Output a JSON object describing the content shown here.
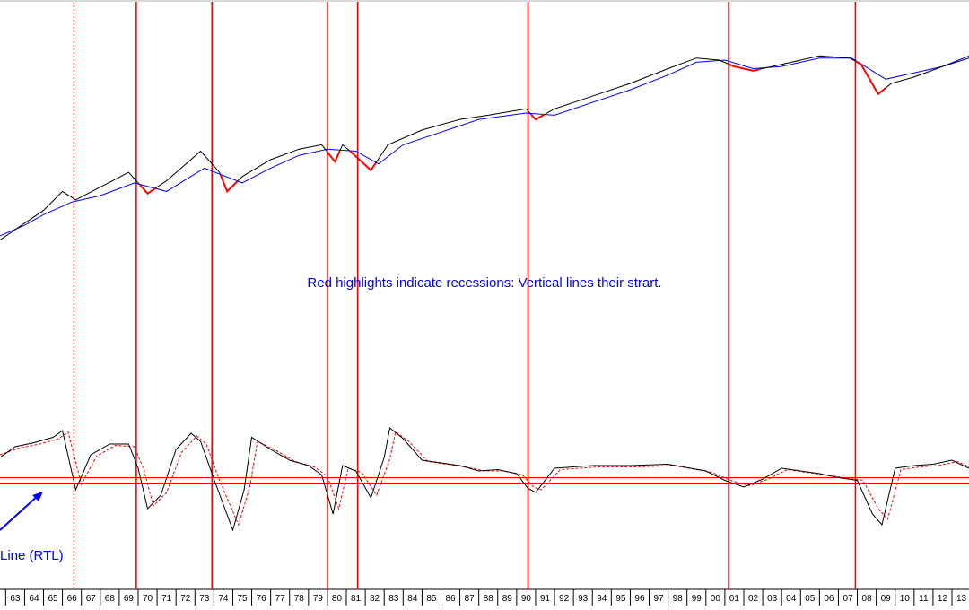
{
  "chart_data": {
    "type": "line",
    "title": "",
    "xlabel": "",
    "ylabel": "",
    "x_tick_labels": [
      "63",
      "64",
      "65",
      "66",
      "67",
      "68",
      "69",
      "70",
      "71",
      "72",
      "73",
      "74",
      "75",
      "76",
      "77",
      "78",
      "79",
      "80",
      "81",
      "82",
      "83",
      "84",
      "85",
      "86",
      "87",
      "88",
      "89",
      "90",
      "91",
      "92",
      "93",
      "94",
      "95",
      "96",
      "97",
      "98",
      "99",
      "00",
      "01",
      "02",
      "03",
      "04",
      "05",
      "06",
      "07",
      "08",
      "09",
      "10",
      "11",
      "12",
      "13"
    ],
    "x_range": [
      1962.7,
      2013.9
    ],
    "recession_starts": [
      1969.9,
      1973.9,
      1980.0,
      1981.6,
      1990.6,
      2001.2,
      2007.9
    ],
    "non_recession_marker": 1966.6,
    "grid": false,
    "annotations": {
      "main": "Red highlights indicate recessions: Vertical lines their strart.",
      "indicator": "Line (RTL)"
    },
    "colors": {
      "price": "#000000",
      "moving_average": "#0000ff",
      "recession_highlight": "#ff0000",
      "vertical_lines": "#ff0000",
      "indicator": "#000000",
      "indicator_signal": "#ff0000",
      "annotation_text": "#0000ff",
      "arrow": "#0000ff"
    },
    "panels": [
      {
        "name": "upper",
        "series": [
          {
            "type": "line",
            "points": [
              [
                1962.7,
                0.1
              ],
              [
                1964,
                0.9
              ],
              [
                1965,
                1.5
              ],
              [
                1966,
                2.4
              ],
              [
                1966.7,
                2.0
              ],
              [
                1968,
                2.6
              ],
              [
                1969.5,
                3.3
              ],
              [
                1970.5,
                2.3
              ],
              [
                1971.5,
                2.9
              ],
              [
                1973.3,
                4.3
              ],
              [
                1974.3,
                3.3
              ],
              [
                1974.7,
                2.4
              ],
              [
                1975.5,
                3.1
              ],
              [
                1977,
                3.9
              ],
              [
                1978.5,
                4.4
              ],
              [
                1979.7,
                4.6
              ],
              [
                1980.4,
                3.8
              ],
              [
                1980.8,
                4.6
              ],
              [
                1981.2,
                4.3
              ],
              [
                1982.3,
                3.4
              ],
              [
                1983.2,
                4.6
              ],
              [
                1985,
                5.3
              ],
              [
                1987,
                5.8
              ],
              [
                1988.5,
                6.0
              ],
              [
                1990.5,
                6.3
              ],
              [
                1991,
                5.8
              ],
              [
                1992,
                6.3
              ],
              [
                1994,
                6.9
              ],
              [
                1996,
                7.5
              ],
              [
                1998,
                8.2
              ],
              [
                1999.5,
                8.7
              ],
              [
                2000.7,
                8.6
              ],
              [
                2001.5,
                8.3
              ],
              [
                2002.5,
                8.1
              ],
              [
                2004,
                8.4
              ],
              [
                2006,
                8.8
              ],
              [
                2007.6,
                8.7
              ],
              [
                2008.2,
                8.4
              ],
              [
                2009.1,
                7.0
              ],
              [
                2009.8,
                7.5
              ],
              [
                2011,
                7.8
              ],
              [
                2012.5,
                8.3
              ],
              [
                2013.9,
                8.7
              ]
            ]
          },
          {
            "type": "moving-average",
            "points": [
              [
                1962.7,
                0.3
              ],
              [
                1964,
                0.8
              ],
              [
                1965,
                1.3
              ],
              [
                1966.5,
                1.9
              ],
              [
                1968,
                2.2
              ],
              [
                1969.8,
                2.8
              ],
              [
                1971.5,
                2.4
              ],
              [
                1973.5,
                3.5
              ],
              [
                1975.5,
                2.8
              ],
              [
                1977,
                3.5
              ],
              [
                1978.5,
                4.1
              ],
              [
                1980,
                4.4
              ],
              [
                1981.5,
                4.3
              ],
              [
                1982.7,
                3.7
              ],
              [
                1984,
                4.6
              ],
              [
                1986,
                5.2
              ],
              [
                1988,
                5.8
              ],
              [
                1990.5,
                6.1
              ],
              [
                1992,
                6.0
              ],
              [
                1994,
                6.6
              ],
              [
                1996,
                7.2
              ],
              [
                1998,
                7.9
              ],
              [
                1999.5,
                8.5
              ],
              [
                2001,
                8.6
              ],
              [
                2002.5,
                8.2
              ],
              [
                2004,
                8.3
              ],
              [
                2006,
                8.7
              ],
              [
                2007.7,
                8.7
              ],
              [
                2009.5,
                7.7
              ],
              [
                2011,
                8.0
              ],
              [
                2012.5,
                8.3
              ],
              [
                2013.9,
                8.8
              ]
            ]
          }
        ]
      },
      {
        "name": "lower",
        "reference_lines": [
          0.3,
          -0.1
        ],
        "series": [
          {
            "type": "line",
            "points": [
              [
                1962.7,
                1.8
              ],
              [
                1963.5,
                2.6
              ],
              [
                1964.5,
                2.9
              ],
              [
                1965.5,
                3.3
              ],
              [
                1966,
                3.8
              ],
              [
                1966.7,
                -0.6
              ],
              [
                1967.5,
                2.0
              ],
              [
                1968.5,
                2.8
              ],
              [
                1969.5,
                2.8
              ],
              [
                1970,
                1.0
              ],
              [
                1970.5,
                -2.0
              ],
              [
                1971.2,
                -1.0
              ],
              [
                1972,
                2.4
              ],
              [
                1972.8,
                3.6
              ],
              [
                1973.3,
                3.0
              ],
              [
                1974,
                0.2
              ],
              [
                1975,
                -3.6
              ],
              [
                1975.6,
                -0.6
              ],
              [
                1976,
                3.3
              ],
              [
                1977,
                2.4
              ],
              [
                1978,
                1.6
              ],
              [
                1979,
                1.2
              ],
              [
                1979.7,
                0.5
              ],
              [
                1980.3,
                -2.4
              ],
              [
                1980.8,
                1.2
              ],
              [
                1981.5,
                0.8
              ],
              [
                1982.3,
                -1.2
              ],
              [
                1983,
                1.8
              ],
              [
                1983.3,
                4.0
              ],
              [
                1984,
                3.2
              ],
              [
                1985,
                1.6
              ],
              [
                1986,
                1.4
              ],
              [
                1987,
                1.2
              ],
              [
                1988,
                0.8
              ],
              [
                1989,
                0.9
              ],
              [
                1990,
                0.6
              ],
              [
                1990.6,
                -0.5
              ],
              [
                1991,
                -0.8
              ],
              [
                1992,
                1.0
              ],
              [
                1994,
                1.2
              ],
              [
                1996,
                1.2
              ],
              [
                1998,
                1.3
              ],
              [
                2000,
                0.8
              ],
              [
                2001,
                0.1
              ],
              [
                2002,
                -0.4
              ],
              [
                2003,
                0.2
              ],
              [
                2004,
                1.0
              ],
              [
                2005,
                0.8
              ],
              [
                2006,
                0.6
              ],
              [
                2007,
                0.3
              ],
              [
                2008,
                0.1
              ],
              [
                2008.8,
                -2.4
              ],
              [
                2009.3,
                -3.2
              ],
              [
                2010,
                1.0
              ],
              [
                2011,
                1.2
              ],
              [
                2012,
                1.3
              ],
              [
                2013,
                1.6
              ],
              [
                2013.9,
                1.0
              ]
            ]
          },
          {
            "type": "line",
            "points": [
              [
                1962.7,
                2.0
              ],
              [
                1963.7,
                2.5
              ],
              [
                1964.8,
                2.8
              ],
              [
                1965.8,
                3.2
              ],
              [
                1966.3,
                3.7
              ],
              [
                1967,
                -0.2
              ],
              [
                1967.8,
                1.9
              ],
              [
                1968.8,
                2.7
              ],
              [
                1969.8,
                2.6
              ],
              [
                1970.3,
                0.9
              ],
              [
                1970.8,
                -1.8
              ],
              [
                1971.5,
                -0.8
              ],
              [
                1972.3,
                2.2
              ],
              [
                1973.1,
                3.4
              ],
              [
                1973.6,
                2.8
              ],
              [
                1974.3,
                0.1
              ],
              [
                1975.3,
                -3.2
              ],
              [
                1975.9,
                -0.4
              ],
              [
                1976.3,
                3.0
              ],
              [
                1977.3,
                2.3
              ],
              [
                1978.3,
                1.5
              ],
              [
                1979.3,
                1.1
              ],
              [
                1980,
                0.4
              ],
              [
                1980.6,
                -2.0
              ],
              [
                1981.1,
                1.0
              ],
              [
                1981.8,
                0.7
              ],
              [
                1982.6,
                -1.0
              ],
              [
                1983.3,
                1.7
              ],
              [
                1983.6,
                3.7
              ],
              [
                1984.3,
                3.0
              ],
              [
                1985.3,
                1.5
              ],
              [
                1986.3,
                1.3
              ],
              [
                1987.3,
                1.1
              ],
              [
                1988.3,
                0.8
              ],
              [
                1989.3,
                0.8
              ],
              [
                1990.3,
                0.5
              ],
              [
                1990.9,
                -0.4
              ],
              [
                1991.3,
                -0.6
              ],
              [
                1992.3,
                0.9
              ],
              [
                1994.3,
                1.1
              ],
              [
                1996.3,
                1.1
              ],
              [
                1998.3,
                1.2
              ],
              [
                2000.3,
                0.7
              ],
              [
                2001.3,
                0.1
              ],
              [
                2002.3,
                -0.3
              ],
              [
                2003.3,
                0.2
              ],
              [
                2004.3,
                0.9
              ],
              [
                2005.3,
                0.7
              ],
              [
                2006.3,
                0.5
              ],
              [
                2007.3,
                0.3
              ],
              [
                2008.3,
                0.1
              ],
              [
                2009.1,
                -2.0
              ],
              [
                2009.6,
                -2.8
              ],
              [
                2010.3,
                0.9
              ],
              [
                2011.3,
                1.1
              ],
              [
                2012.3,
                1.2
              ],
              [
                2013.3,
                1.5
              ],
              [
                2013.9,
                1.1
              ]
            ]
          }
        ]
      }
    ]
  }
}
